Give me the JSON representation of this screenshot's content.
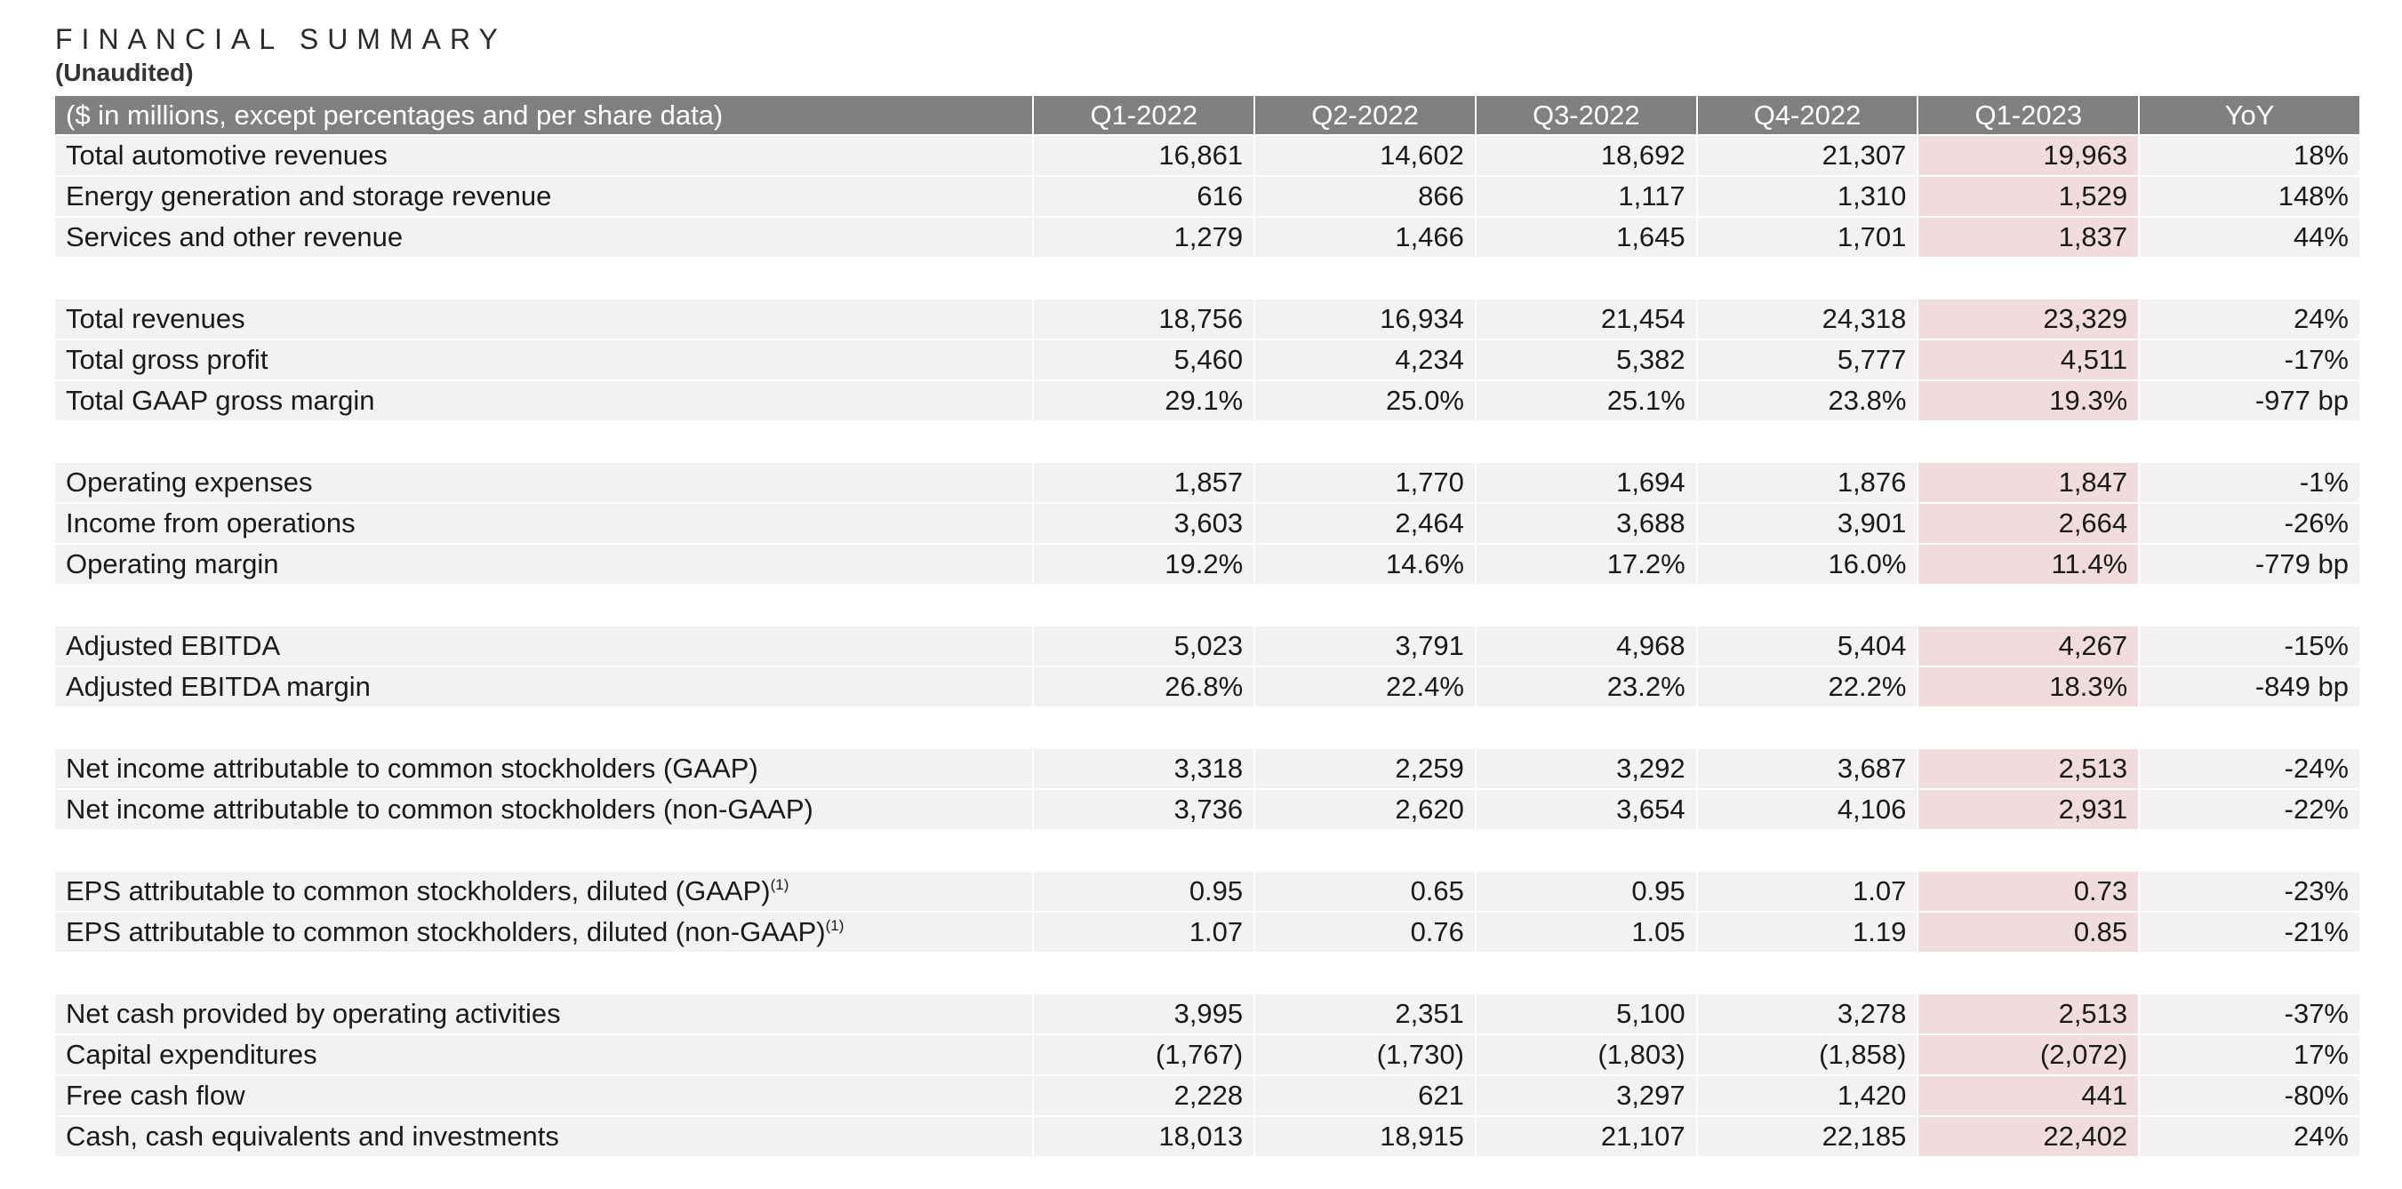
{
  "document": {
    "title": "FINANCIAL SUMMARY",
    "subtitle": "(Unaudited)"
  },
  "table": {
    "header": [
      "($ in millions, except percentages and per share data)",
      "Q1-2022",
      "Q2-2022",
      "Q3-2022",
      "Q4-2022",
      "Q1-2023",
      "YoY"
    ],
    "highlight_column_color": "#f0dcdc",
    "header_color": "#808080",
    "groups": [
      [
        {
          "label": "Total automotive revenues",
          "values": [
            "16,861",
            "14,602",
            "18,692",
            "21,307",
            "19,963",
            "18%"
          ]
        },
        {
          "label": "Energy generation and storage revenue",
          "values": [
            "616",
            "866",
            "1,117",
            "1,310",
            "1,529",
            "148%"
          ]
        },
        {
          "label": "Services and other revenue",
          "values": [
            "1,279",
            "1,466",
            "1,645",
            "1,701",
            "1,837",
            "44%"
          ]
        }
      ],
      [
        {
          "label": "Total revenues",
          "values": [
            "18,756",
            "16,934",
            "21,454",
            "24,318",
            "23,329",
            "24%"
          ]
        },
        {
          "label": "Total gross profit",
          "values": [
            "5,460",
            "4,234",
            "5,382",
            "5,777",
            "4,511",
            "-17%"
          ]
        },
        {
          "label": "Total GAAP gross margin",
          "values": [
            "29.1%",
            "25.0%",
            "25.1%",
            "23.8%",
            "19.3%",
            "-977 bp"
          ]
        }
      ],
      [
        {
          "label": "Operating expenses",
          "values": [
            "1,857",
            "1,770",
            "1,694",
            "1,876",
            "1,847",
            "-1%"
          ]
        },
        {
          "label": "Income from operations",
          "values": [
            "3,603",
            "2,464",
            "3,688",
            "3,901",
            "2,664",
            "-26%"
          ]
        },
        {
          "label": "Operating margin",
          "values": [
            "19.2%",
            "14.6%",
            "17.2%",
            "16.0%",
            "11.4%",
            "-779 bp"
          ]
        }
      ],
      [
        {
          "label": "Adjusted EBITDA",
          "values": [
            "5,023",
            "3,791",
            "4,968",
            "5,404",
            "4,267",
            "-15%"
          ]
        },
        {
          "label": "Adjusted EBITDA margin",
          "values": [
            "26.8%",
            "22.4%",
            "23.2%",
            "22.2%",
            "18.3%",
            "-849 bp"
          ]
        }
      ],
      [
        {
          "label": "Net income attributable to common stockholders (GAAP)",
          "values": [
            "3,318",
            "2,259",
            "3,292",
            "3,687",
            "2,513",
            "-24%"
          ]
        },
        {
          "label": "Net income attributable to common stockholders (non-GAAP)",
          "values": [
            "3,736",
            "2,620",
            "3,654",
            "4,106",
            "2,931",
            "-22%"
          ]
        }
      ],
      [
        {
          "label": "EPS attributable to common stockholders, diluted (GAAP)",
          "footnote": "(1)",
          "values": [
            "0.95",
            "0.65",
            "0.95",
            "1.07",
            "0.73",
            "-23%"
          ]
        },
        {
          "label": "EPS attributable to common stockholders, diluted (non-GAAP)",
          "footnote": "(1)",
          "values": [
            "1.07",
            "0.76",
            "1.05",
            "1.19",
            "0.85",
            "-21%"
          ]
        }
      ],
      [
        {
          "label": "Net cash provided by operating activities",
          "values": [
            "3,995",
            "2,351",
            "5,100",
            "3,278",
            "2,513",
            "-37%"
          ]
        },
        {
          "label": "Capital expenditures",
          "values": [
            "(1,767)",
            "(1,730)",
            "(1,803)",
            "(1,858)",
            "(2,072)",
            "17%"
          ]
        },
        {
          "label": "Free cash flow",
          "values": [
            "2,228",
            "621",
            "3,297",
            "1,420",
            "441",
            "-80%"
          ]
        },
        {
          "label": "Cash, cash equivalents and investments",
          "values": [
            "18,013",
            "18,915",
            "21,107",
            "22,185",
            "22,402",
            "24%"
          ]
        }
      ]
    ]
  }
}
